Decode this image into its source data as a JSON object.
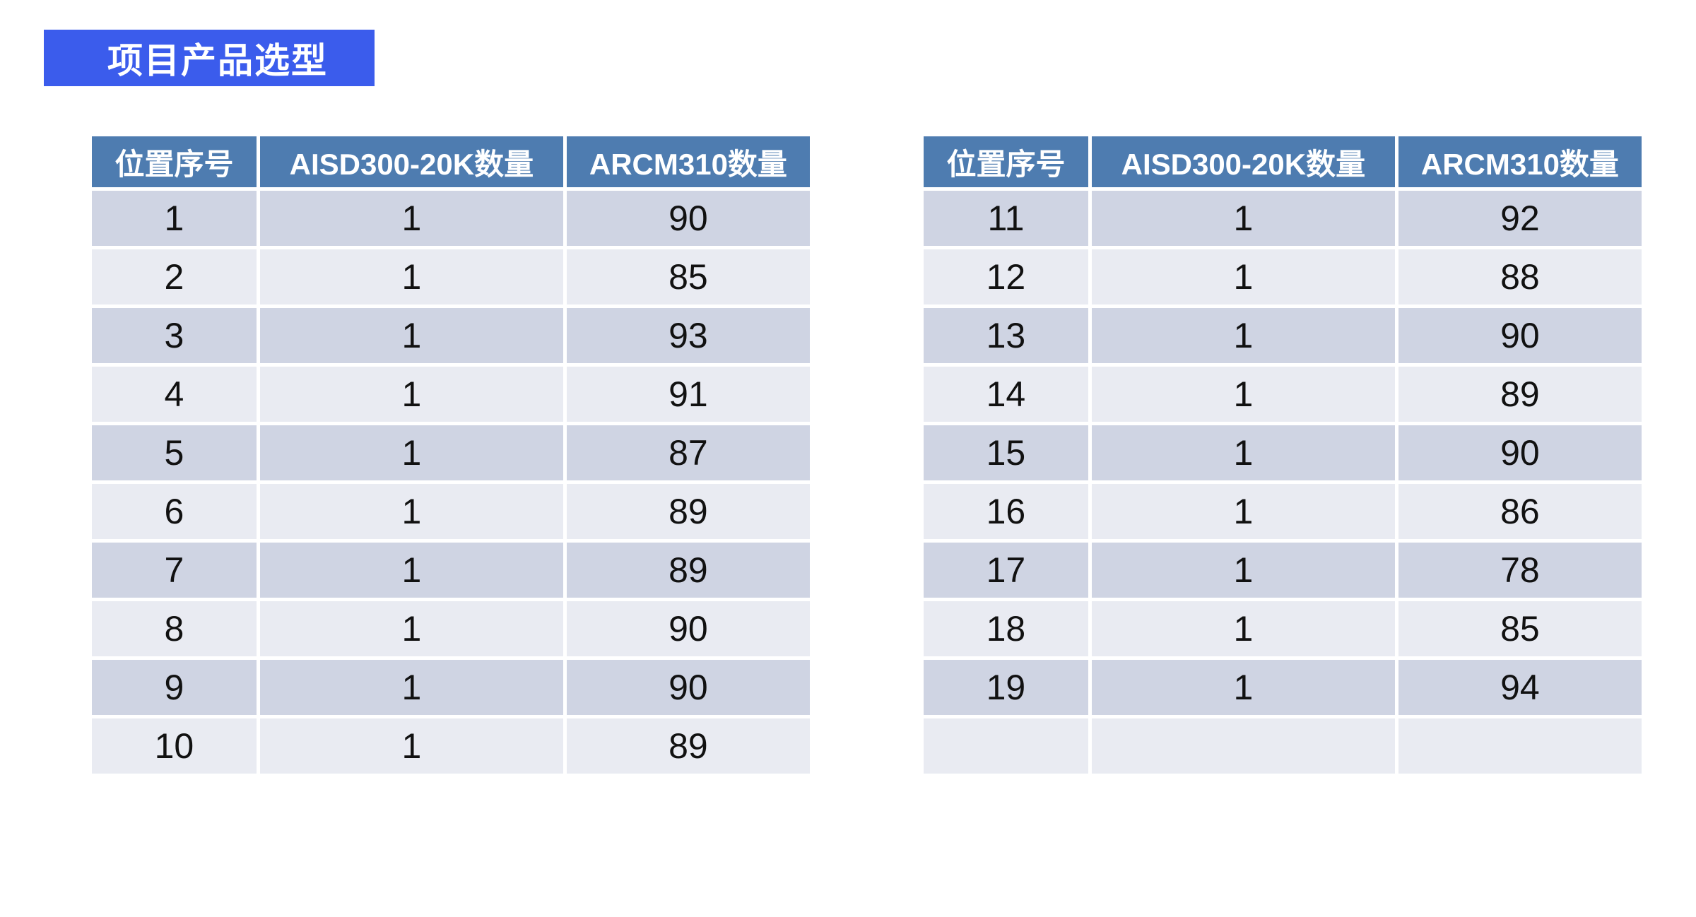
{
  "title": {
    "label": "项目产品选型"
  },
  "columns": [
    "位置序号",
    "AISD300-20K数量",
    "ARCM310数量"
  ],
  "left_table": {
    "rows": [
      [
        "1",
        "1",
        "90"
      ],
      [
        "2",
        "1",
        "85"
      ],
      [
        "3",
        "1",
        "93"
      ],
      [
        "4",
        "1",
        "91"
      ],
      [
        "5",
        "1",
        "87"
      ],
      [
        "6",
        "1",
        "89"
      ],
      [
        "7",
        "1",
        "89"
      ],
      [
        "8",
        "1",
        "90"
      ],
      [
        "9",
        "1",
        "90"
      ],
      [
        "10",
        "1",
        "89"
      ]
    ]
  },
  "right_table": {
    "rows": [
      [
        "11",
        "1",
        "92"
      ],
      [
        "12",
        "1",
        "88"
      ],
      [
        "13",
        "1",
        "90"
      ],
      [
        "14",
        "1",
        "89"
      ],
      [
        "15",
        "1",
        "90"
      ],
      [
        "16",
        "1",
        "86"
      ],
      [
        "17",
        "1",
        "78"
      ],
      [
        "18",
        "1",
        "85"
      ],
      [
        "19",
        "1",
        "94"
      ],
      [
        "",
        "",
        ""
      ]
    ]
  },
  "colors": {
    "page_bg": "#FFFFFF",
    "title_bg": "#3B5CEC",
    "title_text": "#FFFFFF",
    "header_bg": "#4E7CB0",
    "header_text": "#FFFFFF",
    "row_odd_bg": "#CFD4E3",
    "row_even_bg": "#E9EBF2",
    "cell_text": "#111111",
    "grid_gap": "#FFFFFF"
  }
}
